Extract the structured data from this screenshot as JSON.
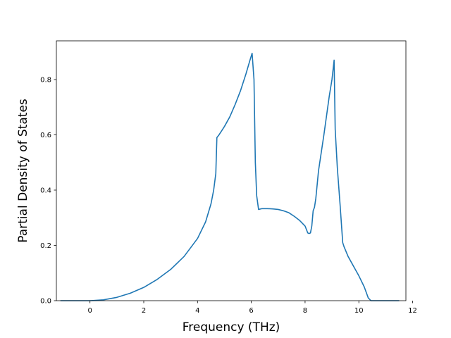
{
  "chart_data": {
    "type": "line",
    "title": "",
    "xlabel": "Frequency (THz)",
    "ylabel": "Partial Density of States",
    "xlim": [
      -1.25,
      11.75
    ],
    "ylim": [
      0,
      0.94
    ],
    "grid": false,
    "x_ticks": [
      0,
      2,
      4,
      6,
      8,
      10,
      12
    ],
    "y_ticks": [
      0.0,
      0.2,
      0.4,
      0.6,
      0.8
    ],
    "x_tick_labels": [
      "0",
      "2",
      "4",
      "6",
      "8",
      "10",
      "12"
    ],
    "y_tick_labels": [
      "0.0",
      "0.2",
      "0.4",
      "0.6",
      "0.8"
    ],
    "series_color": "#1f77b4",
    "series": [
      {
        "x": [
          -1.1,
          0.0,
          0.5,
          1.0,
          1.5,
          2.0,
          2.5,
          3.0,
          3.5,
          4.0,
          4.3,
          4.5,
          4.6,
          4.68,
          4.72,
          4.8,
          5.0,
          5.2,
          5.4,
          5.6,
          5.8,
          5.95,
          6.03,
          6.1,
          6.15,
          6.2,
          6.27,
          6.4,
          6.6,
          6.8,
          7.0,
          7.2,
          7.4,
          7.6,
          7.8,
          8.0,
          8.1,
          8.15,
          8.2,
          8.25,
          8.3,
          8.35,
          8.4,
          8.5,
          8.7,
          8.9,
          9.0,
          9.08,
          9.12,
          9.2,
          9.3,
          9.4,
          9.45,
          9.6,
          9.8,
          10.0,
          10.2,
          10.35,
          10.45,
          10.5,
          11.5
        ],
        "y": [
          0.0,
          0.0,
          0.003,
          0.012,
          0.027,
          0.048,
          0.077,
          0.113,
          0.16,
          0.225,
          0.285,
          0.35,
          0.4,
          0.46,
          0.59,
          0.6,
          0.63,
          0.665,
          0.71,
          0.76,
          0.82,
          0.87,
          0.895,
          0.8,
          0.5,
          0.38,
          0.33,
          0.333,
          0.333,
          0.332,
          0.33,
          0.325,
          0.318,
          0.305,
          0.29,
          0.27,
          0.245,
          0.243,
          0.245,
          0.27,
          0.325,
          0.338,
          0.37,
          0.47,
          0.6,
          0.74,
          0.8,
          0.87,
          0.62,
          0.48,
          0.35,
          0.21,
          0.195,
          0.16,
          0.125,
          0.09,
          0.05,
          0.01,
          0.0,
          0.0,
          0.0
        ]
      }
    ]
  }
}
